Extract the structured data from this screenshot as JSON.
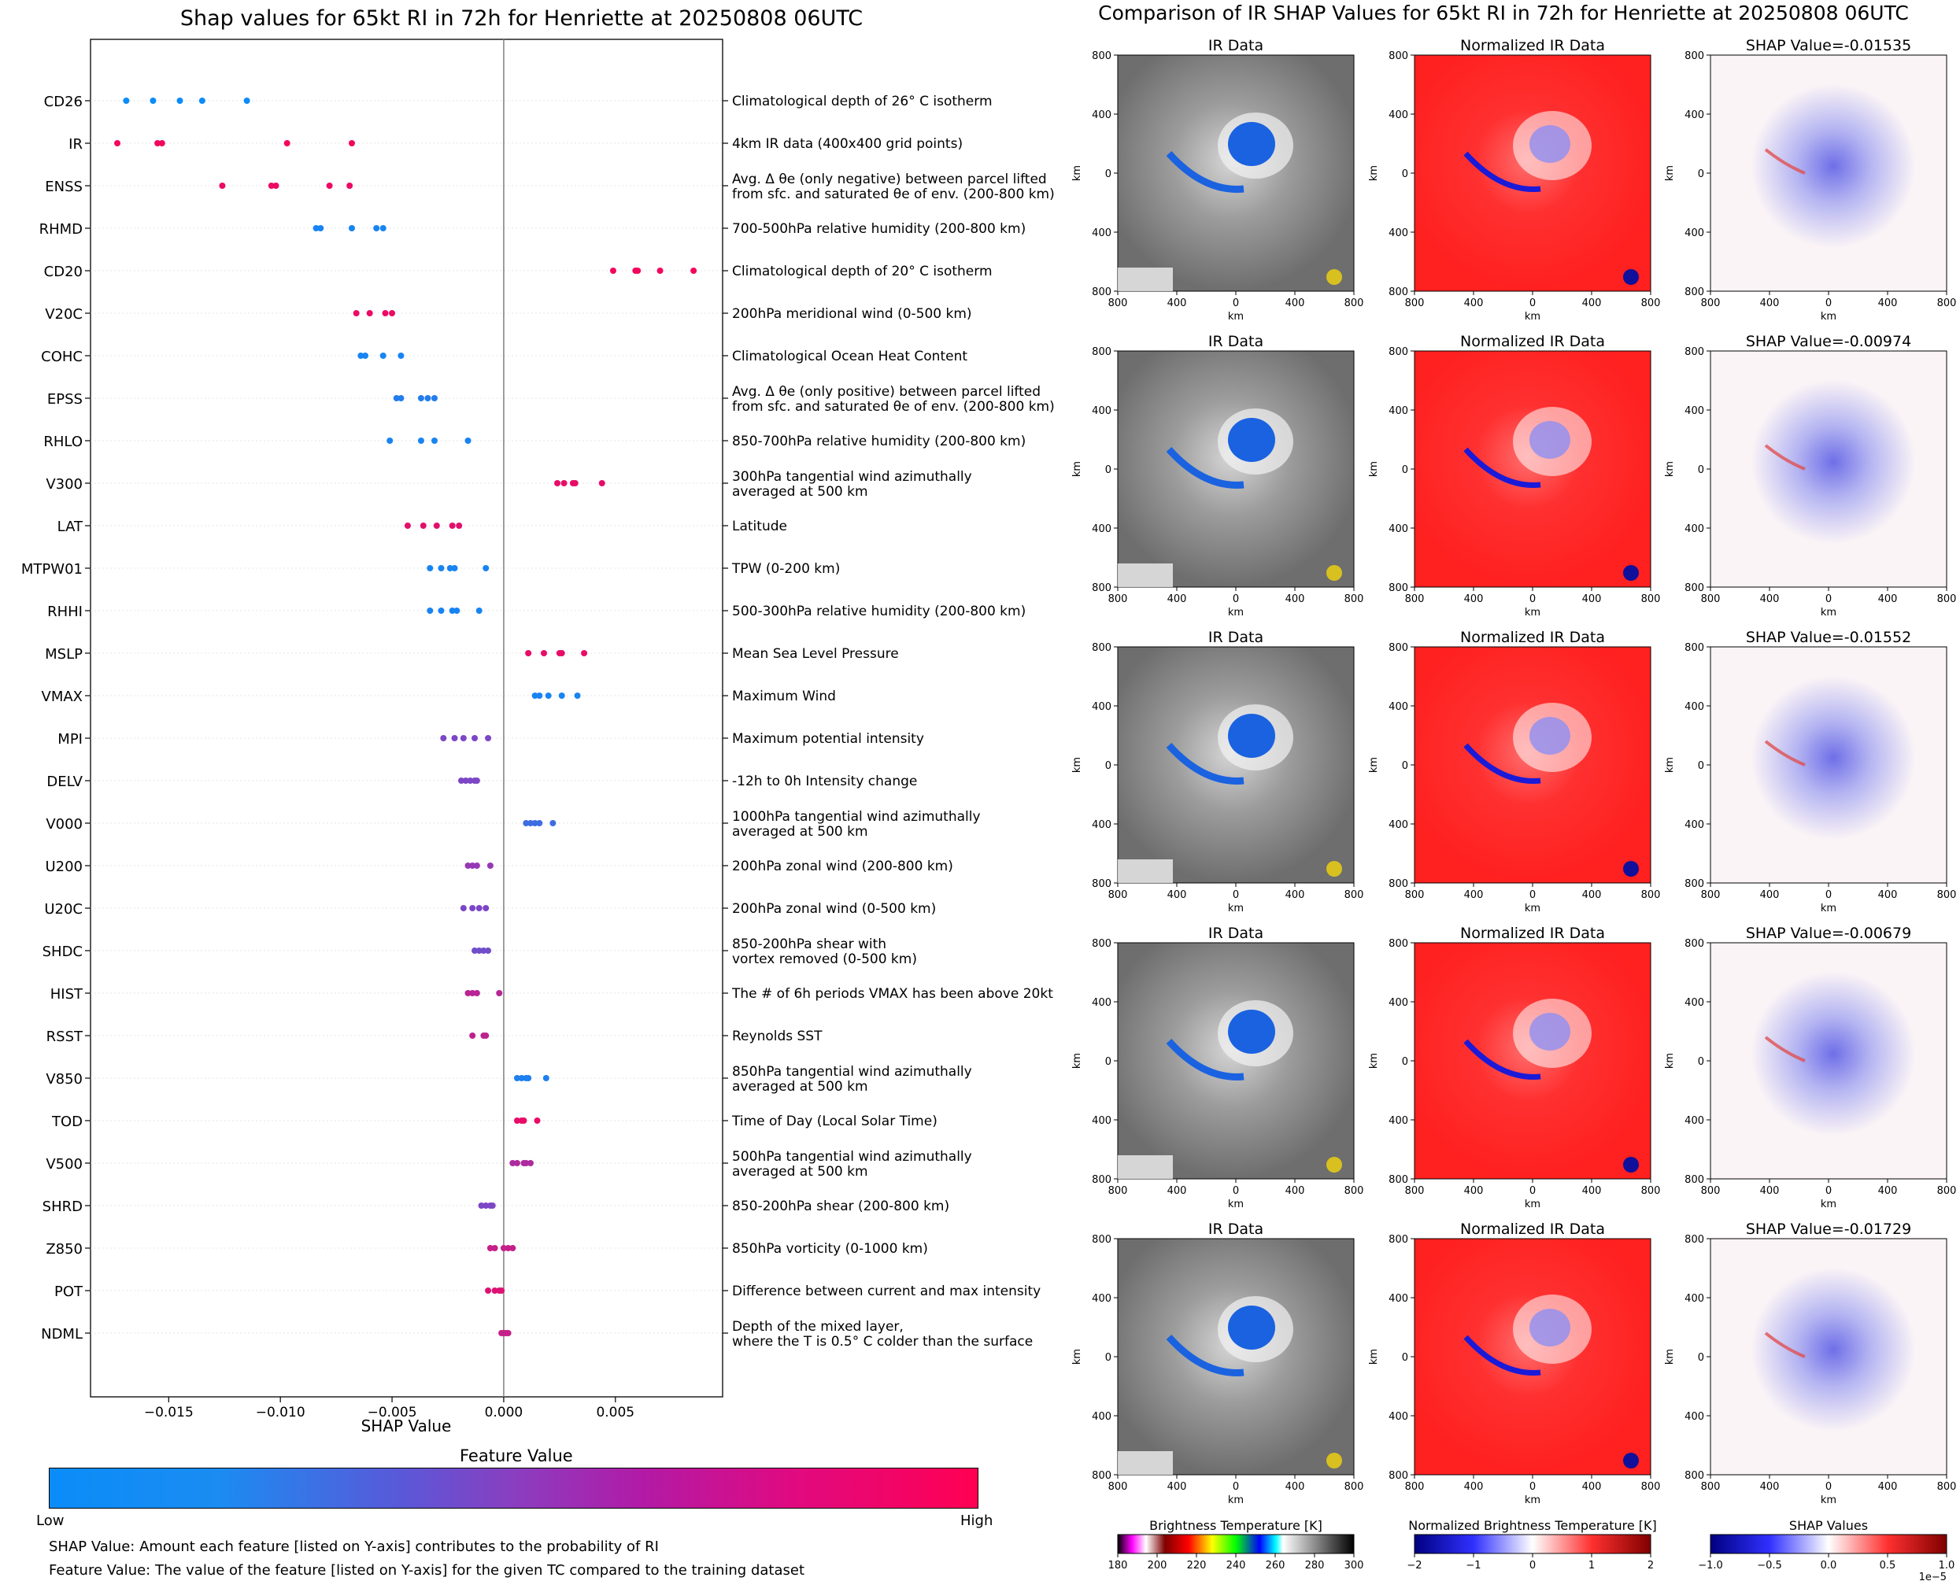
{
  "left_title": "Shap values for 65kt RI in 72h for Henriette at 20250808 06UTC",
  "right_title": "Comparison of IR SHAP Values for 65kt RI in 72h for Henriette at 20250808 06UTC",
  "chart_data": [
    {
      "type": "scatter",
      "title": "Shap values for 65kt RI in 72h for Henriette at 20250808 06UTC",
      "xlabel": "SHAP Value",
      "xlim": [
        -0.0185,
        0.0098
      ],
      "xticks": [
        -0.015,
        -0.01,
        -0.005,
        0.0,
        0.005
      ],
      "xtick_labels": [
        "−0.015",
        "−0.010",
        "−0.005",
        "0.000",
        "0.005"
      ],
      "features": [
        {
          "name": "CD26",
          "desc": "Climatological depth of 26° C isotherm",
          "fv": 0.0,
          "values": [
            -0.0169,
            -0.0157,
            -0.0145,
            -0.0135,
            -0.0115
          ]
        },
        {
          "name": "IR",
          "desc": "4km IR data (400x400 grid points)",
          "fv": 0.95,
          "values": [
            -0.0173,
            -0.0155,
            -0.0153,
            -0.0097,
            -0.0068
          ]
        },
        {
          "name": "ENSS",
          "desc": "Avg. Δ θe (only negative) between parcel lifted\nfrom sfc. and saturated θe of env. (200-800 km)",
          "fv": 0.92,
          "values": [
            -0.0126,
            -0.0104,
            -0.0102,
            -0.0078,
            -0.0069
          ]
        },
        {
          "name": "RHMD",
          "desc": "700-500hPa relative humidity (200-800 km)",
          "fv": 0.05,
          "values": [
            -0.0084,
            -0.0082,
            -0.0068,
            -0.0057,
            -0.0054
          ]
        },
        {
          "name": "CD20",
          "desc": "Climatological depth of 20° C isotherm",
          "fv": 0.95,
          "values": [
            0.0049,
            0.0059,
            0.006,
            0.007,
            0.0085
          ]
        },
        {
          "name": "V20C",
          "desc": "200hPa meridional wind (0-500 km)",
          "fv": 0.92,
          "values": [
            -0.0066,
            -0.006,
            -0.0053,
            -0.005
          ]
        },
        {
          "name": "COHC",
          "desc": "Climatological Ocean Heat Content",
          "fv": 0.05,
          "values": [
            -0.0064,
            -0.0062,
            -0.0054,
            -0.0046
          ]
        },
        {
          "name": "EPSS",
          "desc": "Avg. Δ θe (only positive) between parcel lifted\nfrom sfc. and saturated θe of env. (200-800 km)",
          "fv": 0.1,
          "values": [
            -0.0048,
            -0.0046,
            -0.0037,
            -0.0034,
            -0.0031
          ]
        },
        {
          "name": "RHLO",
          "desc": "850-700hPa relative humidity (200-800 km)",
          "fv": 0.05,
          "values": [
            -0.0051,
            -0.0037,
            -0.0031,
            -0.0016
          ]
        },
        {
          "name": "V300",
          "desc": "300hPa tangential wind azimuthally\naveraged at 500 km",
          "fv": 0.9,
          "values": [
            0.0024,
            0.0027,
            0.0031,
            0.0032,
            0.0044
          ]
        },
        {
          "name": "LAT",
          "desc": "Latitude",
          "fv": 0.88,
          "values": [
            -0.0043,
            -0.0036,
            -0.003,
            -0.0023,
            -0.002
          ]
        },
        {
          "name": "MTPW01",
          "desc": "TPW (0-200 km)",
          "fv": 0.05,
          "values": [
            -0.0033,
            -0.0028,
            -0.0024,
            -0.0022,
            -0.0008
          ]
        },
        {
          "name": "RHHI",
          "desc": "500-300hPa relative humidity (200-800 km)",
          "fv": 0.05,
          "values": [
            -0.0033,
            -0.0028,
            -0.0023,
            -0.0021,
            -0.0011
          ]
        },
        {
          "name": "MSLP",
          "desc": "Mean Sea Level Pressure",
          "fv": 0.9,
          "values": [
            0.0011,
            0.0018,
            0.0025,
            0.0026,
            0.0036
          ]
        },
        {
          "name": "VMAX",
          "desc": "Maximum Wind",
          "fv": 0.05,
          "values": [
            0.0014,
            0.0016,
            0.002,
            0.0026,
            0.0033
          ]
        },
        {
          "name": "MPI",
          "desc": "Maximum potential intensity",
          "fv": 0.45,
          "values": [
            -0.0027,
            -0.0022,
            -0.0018,
            -0.0013,
            -0.0007
          ]
        },
        {
          "name": "DELV",
          "desc": "-12h to 0h Intensity change",
          "fv": 0.45,
          "values": [
            -0.0019,
            -0.0017,
            -0.0015,
            -0.0013,
            -0.0012
          ]
        },
        {
          "name": "V000",
          "desc": "1000hPa tangential wind azimuthally\naveraged at 500 km",
          "fv": 0.2,
          "values": [
            0.001,
            0.0012,
            0.0014,
            0.0016,
            0.0022
          ]
        },
        {
          "name": "U200",
          "desc": "200hPa zonal wind (200-800 km)",
          "fv": 0.55,
          "values": [
            -0.0016,
            -0.0014,
            -0.0012,
            -0.0006
          ]
        },
        {
          "name": "U20C",
          "desc": "200hPa zonal wind (0-500 km)",
          "fv": 0.45,
          "values": [
            -0.0018,
            -0.0014,
            -0.0011,
            -0.0008
          ]
        },
        {
          "name": "SHDC",
          "desc": "850-200hPa shear with\nvortex removed (0-500 km)",
          "fv": 0.4,
          "values": [
            -0.0013,
            -0.0011,
            -0.0009,
            -0.0007
          ]
        },
        {
          "name": "HIST",
          "desc": "The # of 6h periods VMAX has been above 20kt",
          "fv": 0.7,
          "values": [
            -0.0016,
            -0.0014,
            -0.0012,
            -0.0002
          ]
        },
        {
          "name": "RSST",
          "desc": "Reynolds SST",
          "fv": 0.72,
          "values": [
            -0.0014,
            -0.0009,
            -0.0008
          ]
        },
        {
          "name": "V850",
          "desc": "850hPa tangential wind azimuthally\naveraged at 500 km",
          "fv": 0.08,
          "values": [
            0.0006,
            0.0008,
            0.001,
            0.0011,
            0.0019
          ]
        },
        {
          "name": "TOD",
          "desc": "Time of Day (Local Solar Time)",
          "fv": 0.9,
          "values": [
            0.0006,
            0.0008,
            0.0009,
            0.0015
          ]
        },
        {
          "name": "V500",
          "desc": "500hPa tangential wind azimuthally\naveraged at 500 km",
          "fv": 0.65,
          "values": [
            0.0004,
            0.0006,
            0.0009,
            0.001,
            0.0012
          ]
        },
        {
          "name": "SHRD",
          "desc": "850-200hPa shear (200-800 km)",
          "fv": 0.45,
          "values": [
            -0.001,
            -0.0008,
            -0.0006,
            -0.0005
          ]
        },
        {
          "name": "Z850",
          "desc": "850hPa vorticity (0-1000 km)",
          "fv": 0.75,
          "values": [
            -0.0006,
            -0.0004,
            0.0,
            0.0002,
            0.0004
          ]
        },
        {
          "name": "POT",
          "desc": "Difference between current and max intensity",
          "fv": 0.85,
          "values": [
            -0.0007,
            -0.0004,
            -0.0002,
            -0.0001
          ]
        },
        {
          "name": "NDML",
          "desc": "Depth of the mixed layer,\nwhere the T is 0.5° C colder than the surface",
          "fv": 0.75,
          "values": [
            -0.0001,
            0.0,
            0.0001,
            0.0002
          ]
        }
      ]
    },
    {
      "type": "heatmap",
      "title": "Comparison of IR SHAP Values for 65kt RI in 72h for Henriette at 20250808 06UTC",
      "rows": [
        {
          "ir_title": "IR Data",
          "norm_title": "Normalized IR Data",
          "shap_title": "SHAP Value=-0.01535"
        },
        {
          "ir_title": "IR Data",
          "norm_title": "Normalized IR Data",
          "shap_title": "SHAP Value=-0.00974"
        },
        {
          "ir_title": "IR Data",
          "norm_title": "Normalized IR Data",
          "shap_title": "SHAP Value=-0.01552"
        },
        {
          "ir_title": "IR Data",
          "norm_title": "Normalized IR Data",
          "shap_title": "SHAP Value=-0.00679"
        },
        {
          "ir_title": "IR Data",
          "norm_title": "Normalized IR Data",
          "shap_title": "SHAP Value=-0.01729"
        }
      ],
      "x_ticks": [
        "800",
        "400",
        "0",
        "400",
        "800"
      ],
      "y_ticks": [
        "800",
        "400",
        "0",
        "400",
        "800"
      ],
      "axis_label": "km",
      "colorbars": [
        {
          "label": "Brightness Temperature [K]",
          "ticks": [
            "180",
            "200",
            "220",
            "240",
            "260",
            "280",
            "300"
          ]
        },
        {
          "label": "Normalized Brightness Temperature [K]",
          "ticks": [
            "−2",
            "−1",
            "0",
            "1",
            "2"
          ]
        },
        {
          "label": "SHAP Values",
          "ticks": [
            "−1.0",
            "−0.5",
            "0.0",
            "0.5",
            "1.0"
          ],
          "exponent": "1e−5"
        }
      ]
    }
  ],
  "colors": {
    "low": "#0b8cf8",
    "mid": "#8a3ec0",
    "high": "#ff0052"
  },
  "legend": {
    "title": "Feature Value",
    "low": "Low",
    "high": "High"
  },
  "captions": [
    "SHAP Value: Amount each feature [listed on Y-axis] contributes to the probability of RI",
    "Feature Value: The value of the feature [listed on Y-axis] for the given TC compared to the training dataset"
  ]
}
